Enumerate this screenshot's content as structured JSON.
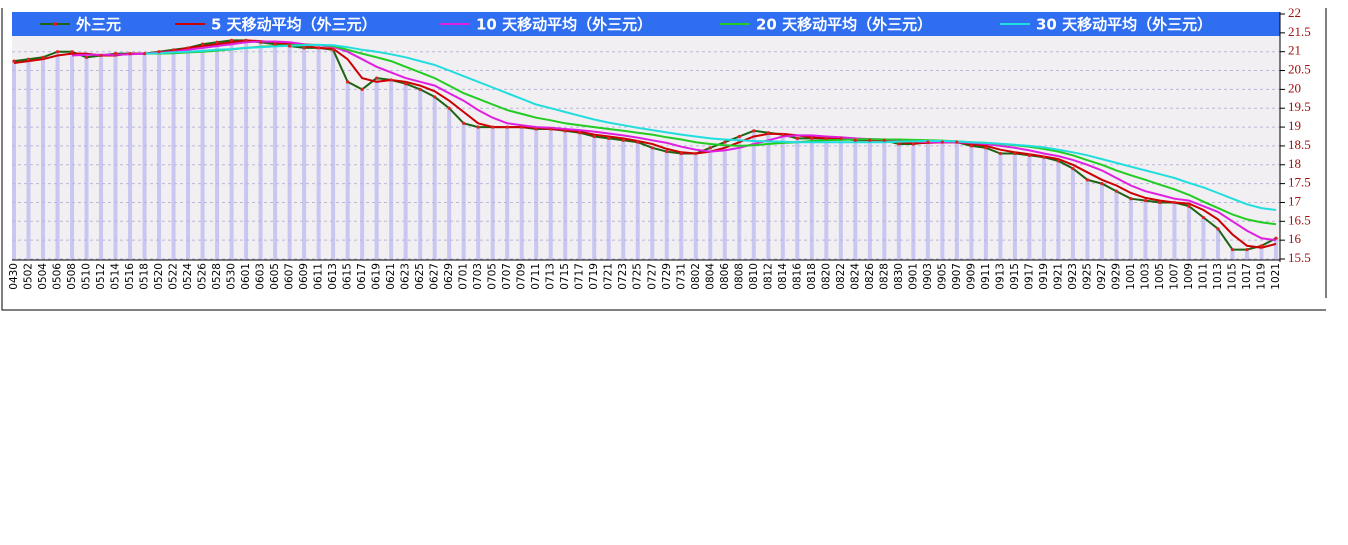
{
  "chart_data": {
    "type": "line",
    "categories": [
      "0430",
      "0502",
      "0504",
      "0506",
      "0508",
      "0510",
      "0512",
      "0514",
      "0516",
      "0518",
      "0520",
      "0522",
      "0524",
      "0526",
      "0528",
      "0530",
      "0601",
      "0603",
      "0605",
      "0607",
      "0609",
      "0611",
      "0613",
      "0615",
      "0617",
      "0619",
      "0621",
      "0623",
      "0625",
      "0627",
      "0629",
      "0701",
      "0703",
      "0705",
      "0707",
      "0709",
      "0711",
      "0713",
      "0715",
      "0717",
      "0719",
      "0721",
      "0723",
      "0725",
      "0727",
      "0729",
      "0731",
      "0802",
      "0804",
      "0806",
      "0808",
      "0810",
      "0812",
      "0814",
      "0816",
      "0818",
      "0820",
      "0822",
      "0824",
      "0826",
      "0828",
      "0830",
      "0901",
      "0903",
      "0905",
      "0907",
      "0909",
      "0911",
      "0913",
      "0915",
      "0917",
      "0919",
      "0921",
      "0923",
      "0925",
      "0927",
      "0929",
      "1001",
      "1003",
      "1005",
      "1007",
      "1009",
      "1011",
      "1013",
      "1015",
      "1017",
      "1019",
      "1021"
    ],
    "series": [
      {
        "name": "外三元",
        "color": "#1e6414",
        "values": [
          20.75,
          20.8,
          20.85,
          21.0,
          21.0,
          20.85,
          20.9,
          20.95,
          20.95,
          20.95,
          21.0,
          21.05,
          21.1,
          21.2,
          21.25,
          21.3,
          21.3,
          21.25,
          21.2,
          21.15,
          21.1,
          21.1,
          21.05,
          20.2,
          20.0,
          20.3,
          20.25,
          20.15,
          20.0,
          19.8,
          19.5,
          19.1,
          19.0,
          19.0,
          19.0,
          19.0,
          18.95,
          18.95,
          18.9,
          18.85,
          18.75,
          18.7,
          18.65,
          18.6,
          18.45,
          18.35,
          18.3,
          18.3,
          18.45,
          18.6,
          18.75,
          18.9,
          18.85,
          18.8,
          18.7,
          18.7,
          18.7,
          18.7,
          18.65,
          18.65,
          18.65,
          18.55,
          18.55,
          18.6,
          18.6,
          18.6,
          18.5,
          18.45,
          18.3,
          18.3,
          18.25,
          18.2,
          18.1,
          17.9,
          17.6,
          17.5,
          17.3,
          17.1,
          17.05,
          17.0,
          17.0,
          16.9,
          16.6,
          16.3,
          15.75,
          15.75,
          15.85,
          16.05
        ]
      },
      {
        "name": "5 天移动平均（外三元）",
        "color": "#cc0000",
        "values": [
          20.7,
          20.75,
          20.8,
          20.9,
          20.95,
          20.95,
          20.9,
          20.9,
          20.95,
          20.95,
          20.98,
          21.02,
          21.1,
          21.15,
          21.2,
          21.25,
          21.3,
          21.28,
          21.25,
          21.2,
          21.15,
          21.1,
          21.08,
          20.8,
          20.3,
          20.2,
          20.25,
          20.2,
          20.1,
          19.95,
          19.7,
          19.4,
          19.1,
          19.0,
          19.0,
          19.0,
          18.98,
          18.95,
          18.92,
          18.88,
          18.8,
          18.75,
          18.7,
          18.63,
          18.55,
          18.42,
          18.33,
          18.3,
          18.35,
          18.45,
          18.6,
          18.75,
          18.82,
          18.82,
          18.78,
          18.73,
          18.7,
          18.7,
          18.68,
          18.66,
          18.65,
          18.6,
          18.57,
          18.58,
          18.6,
          18.6,
          18.55,
          18.5,
          18.4,
          18.33,
          18.28,
          18.22,
          18.15,
          18.0,
          17.8,
          17.6,
          17.45,
          17.25,
          17.12,
          17.05,
          17.0,
          16.97,
          16.8,
          16.55,
          16.15,
          15.85,
          15.8,
          15.9
        ]
      },
      {
        "name": "10 天移动平均（外三元）",
        "color": "#e020e0",
        "values": [
          null,
          null,
          null,
          null,
          20.9,
          20.92,
          20.92,
          20.92,
          20.93,
          20.95,
          20.97,
          21.0,
          21.05,
          21.1,
          21.15,
          21.2,
          21.25,
          21.27,
          21.27,
          21.25,
          21.2,
          21.17,
          21.13,
          21.0,
          20.8,
          20.6,
          20.45,
          20.3,
          20.2,
          20.1,
          19.9,
          19.7,
          19.45,
          19.25,
          19.1,
          19.05,
          19.0,
          18.98,
          18.95,
          18.92,
          18.88,
          18.83,
          18.78,
          18.72,
          18.65,
          18.58,
          18.48,
          18.4,
          18.35,
          18.38,
          18.45,
          18.55,
          18.65,
          18.75,
          18.78,
          18.78,
          18.75,
          18.73,
          18.7,
          18.68,
          18.67,
          18.65,
          18.62,
          18.6,
          18.6,
          18.6,
          18.58,
          18.55,
          18.5,
          18.45,
          18.38,
          18.3,
          18.23,
          18.13,
          18.0,
          17.85,
          17.65,
          17.45,
          17.3,
          17.2,
          17.1,
          17.05,
          16.9,
          16.75,
          16.5,
          16.25,
          16.05,
          16.0
        ]
      },
      {
        "name": "20 天移动平均（外三元）",
        "color": "#22cc22",
        "values": [
          null,
          null,
          null,
          null,
          null,
          null,
          null,
          null,
          null,
          20.95,
          20.95,
          20.96,
          20.98,
          21.0,
          21.03,
          21.06,
          21.1,
          21.13,
          21.15,
          21.17,
          21.18,
          21.18,
          21.15,
          21.05,
          20.95,
          20.85,
          20.75,
          20.6,
          20.45,
          20.3,
          20.1,
          19.9,
          19.75,
          19.6,
          19.45,
          19.35,
          19.25,
          19.18,
          19.1,
          19.05,
          19.0,
          18.95,
          18.9,
          18.85,
          18.8,
          18.73,
          18.67,
          18.6,
          18.55,
          18.52,
          18.5,
          18.52,
          18.55,
          18.58,
          18.6,
          18.63,
          18.65,
          18.66,
          18.67,
          18.68,
          18.67,
          18.67,
          18.66,
          18.65,
          18.64,
          18.62,
          18.6,
          18.58,
          18.55,
          18.52,
          18.48,
          18.42,
          18.35,
          18.25,
          18.12,
          18.0,
          17.85,
          17.72,
          17.6,
          17.47,
          17.35,
          17.2,
          17.02,
          16.85,
          16.68,
          16.55,
          16.47,
          16.42
        ]
      },
      {
        "name": "30 天移动平均（外三元）",
        "color": "#22dddd",
        "values": [
          null,
          null,
          null,
          null,
          null,
          null,
          null,
          null,
          null,
          20.95,
          20.96,
          20.98,
          21.0,
          21.02,
          21.05,
          21.07,
          21.1,
          21.12,
          21.14,
          21.16,
          21.17,
          21.18,
          21.17,
          21.12,
          21.05,
          21.0,
          20.93,
          20.85,
          20.75,
          20.65,
          20.5,
          20.35,
          20.2,
          20.05,
          19.9,
          19.75,
          19.6,
          19.5,
          19.4,
          19.3,
          19.2,
          19.12,
          19.05,
          18.98,
          18.92,
          18.86,
          18.8,
          18.75,
          18.7,
          18.67,
          18.65,
          18.63,
          18.62,
          18.61,
          18.6,
          18.6,
          18.6,
          18.6,
          18.6,
          18.6,
          18.6,
          18.61,
          18.62,
          18.63,
          18.63,
          18.62,
          18.6,
          18.58,
          18.56,
          18.53,
          18.5,
          18.46,
          18.4,
          18.33,
          18.25,
          18.15,
          18.05,
          17.95,
          17.85,
          17.75,
          17.65,
          17.52,
          17.4,
          17.25,
          17.1,
          16.95,
          16.85,
          16.8
        ]
      }
    ],
    "ylim": [
      15.5,
      22
    ],
    "yticks": [
      15.5,
      16,
      16.5,
      17,
      17.5,
      18,
      18.5,
      19,
      19.5,
      20,
      20.5,
      21,
      21.5,
      22
    ],
    "grid": true,
    "markers_color": "#dd2222"
  }
}
